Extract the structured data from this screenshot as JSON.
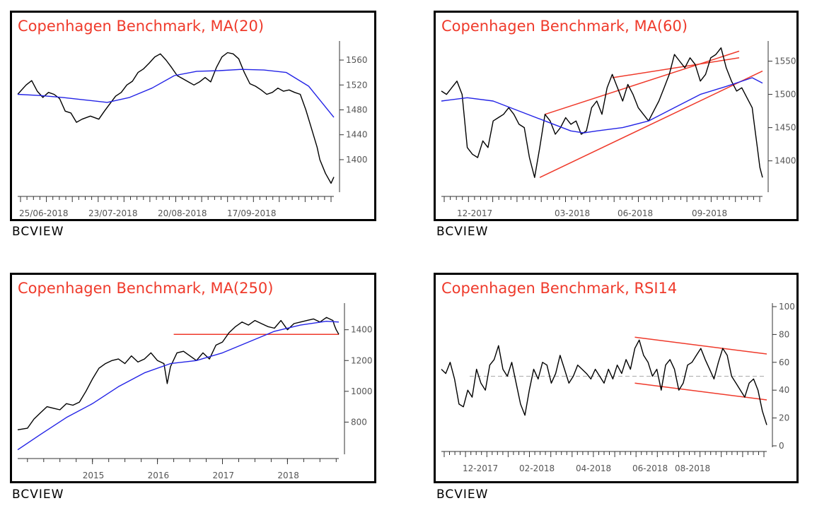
{
  "brand": "BCVIEW",
  "colors": {
    "title": "#ef3a2b",
    "price": "#000000",
    "ma": "#2323e6",
    "trend": "#ef3a2b",
    "midline": "#aaaaaa"
  },
  "chart_data": [
    {
      "type": "line",
      "title": "Copenhagen Benchmark, MA(20)",
      "x_tick_labels": [
        "25/06-2018",
        "23/07-2018",
        "20/08-2018",
        "17/09-2018"
      ],
      "y_ticks": [
        1400,
        1440,
        1480,
        1520,
        1560
      ],
      "ylim": [
        1350,
        1585
      ],
      "series": [
        {
          "role": "price",
          "x": [
            0,
            3,
            5,
            7,
            9,
            11,
            13,
            15,
            17,
            19,
            21,
            23,
            26,
            29,
            31,
            33,
            35,
            37,
            39,
            41,
            43,
            45,
            47,
            49,
            51,
            53,
            55,
            57,
            59,
            61,
            63,
            65,
            67,
            69,
            71,
            73,
            75,
            77,
            79,
            81,
            83,
            85,
            87,
            89,
            91,
            93,
            95,
            97,
            99,
            101,
            103,
            105,
            107,
            108,
            110,
            112,
            113
          ],
          "values": [
            1505,
            1520,
            1527,
            1510,
            1500,
            1508,
            1505,
            1498,
            1478,
            1475,
            1460,
            1465,
            1470,
            1465,
            1478,
            1490,
            1502,
            1508,
            1520,
            1526,
            1540,
            1546,
            1555,
            1565,
            1570,
            1560,
            1548,
            1535,
            1530,
            1525,
            1520,
            1525,
            1532,
            1525,
            1548,
            1565,
            1572,
            1570,
            1562,
            1540,
            1522,
            1518,
            1512,
            1505,
            1508,
            1515,
            1510,
            1512,
            1508,
            1505,
            1480,
            1450,
            1420,
            1400,
            1378,
            1362,
            1372
          ]
        },
        {
          "role": "ma",
          "name": "MA(20)",
          "x": [
            0,
            8,
            16,
            24,
            32,
            40,
            48,
            56,
            64,
            72,
            80,
            88,
            96,
            104,
            113
          ],
          "values": [
            1505,
            1503,
            1500,
            1496,
            1492,
            1500,
            1515,
            1535,
            1542,
            1543,
            1545,
            1544,
            1540,
            1518,
            1468
          ]
        }
      ]
    },
    {
      "type": "line",
      "title": "Copenhagen Benchmark, MA(60)",
      "x_tick_labels": [
        "12-2017",
        "03-2018",
        "06-2018",
        "09-2018"
      ],
      "y_ticks": [
        1400,
        1450,
        1500,
        1550
      ],
      "ylim": [
        1355,
        1575
      ],
      "series": [
        {
          "role": "price",
          "x": [
            0,
            2,
            4,
            6,
            8,
            10,
            12,
            14,
            16,
            18,
            20,
            22,
            24,
            26,
            28,
            30,
            32,
            34,
            36,
            38,
            40,
            42,
            44,
            46,
            48,
            50,
            52,
            54,
            56,
            58,
            60,
            62,
            64,
            66,
            68,
            70,
            72,
            74,
            76,
            78,
            80,
            82,
            84,
            86,
            88,
            90,
            92,
            94,
            96,
            98,
            100,
            102,
            104,
            106,
            108,
            110,
            112,
            114,
            116,
            118,
            120,
            121,
            122,
            123,
            124
          ],
          "values": [
            1505,
            1500,
            1510,
            1520,
            1500,
            1420,
            1410,
            1405,
            1430,
            1420,
            1460,
            1465,
            1470,
            1480,
            1470,
            1455,
            1450,
            1405,
            1375,
            1420,
            1470,
            1460,
            1440,
            1450,
            1465,
            1455,
            1460,
            1440,
            1445,
            1480,
            1490,
            1470,
            1510,
            1530,
            1510,
            1490,
            1515,
            1500,
            1480,
            1470,
            1460,
            1475,
            1490,
            1510,
            1530,
            1560,
            1550,
            1540,
            1555,
            1545,
            1520,
            1530,
            1555,
            1560,
            1570,
            1540,
            1520,
            1505,
            1510,
            1495,
            1480,
            1450,
            1420,
            1390,
            1375
          ]
        },
        {
          "role": "ma",
          "name": "MA(60)",
          "x": [
            0,
            10,
            20,
            30,
            40,
            50,
            55,
            60,
            70,
            80,
            90,
            100,
            110,
            120,
            124
          ],
          "values": [
            1490,
            1495,
            1490,
            1475,
            1460,
            1445,
            1442,
            1445,
            1450,
            1460,
            1480,
            1500,
            1512,
            1525,
            1517
          ]
        }
      ],
      "trendlines": [
        {
          "from": [
            40,
            1470
          ],
          "to": [
            115,
            1565
          ]
        },
        {
          "from": [
            38,
            1375
          ],
          "to": [
            124,
            1535
          ]
        },
        {
          "from": [
            66,
            1525
          ],
          "to": [
            115,
            1555
          ]
        }
      ]
    },
    {
      "type": "line",
      "title": "Copenhagen Benchmark, MA(250)",
      "x_tick_labels": [
        "2015",
        "2016",
        "2017",
        "2018"
      ],
      "y_ticks": [
        800,
        1000,
        1200,
        1400
      ],
      "ylim": [
        600,
        1550
      ],
      "series": [
        {
          "role": "price",
          "x": [
            2013.85,
            2014.0,
            2014.1,
            2014.2,
            2014.3,
            2014.4,
            2014.5,
            2014.6,
            2014.7,
            2014.8,
            2014.9,
            2015.0,
            2015.1,
            2015.2,
            2015.3,
            2015.4,
            2015.5,
            2015.6,
            2015.7,
            2015.8,
            2015.9,
            2016.0,
            2016.1,
            2016.15,
            2016.2,
            2016.3,
            2016.4,
            2016.5,
            2016.6,
            2016.7,
            2016.8,
            2016.9,
            2017.0,
            2017.1,
            2017.2,
            2017.3,
            2017.4,
            2017.5,
            2017.6,
            2017.7,
            2017.8,
            2017.9,
            2018.0,
            2018.1,
            2018.2,
            2018.3,
            2018.4,
            2018.5,
            2018.6,
            2018.7,
            2018.72,
            2018.75,
            2018.79
          ],
          "values": [
            750,
            760,
            820,
            860,
            900,
            890,
            880,
            920,
            910,
            930,
            1000,
            1080,
            1150,
            1180,
            1200,
            1210,
            1180,
            1230,
            1190,
            1210,
            1250,
            1200,
            1180,
            1050,
            1160,
            1250,
            1260,
            1230,
            1200,
            1250,
            1210,
            1300,
            1320,
            1380,
            1420,
            1450,
            1430,
            1460,
            1440,
            1420,
            1410,
            1460,
            1400,
            1440,
            1450,
            1460,
            1470,
            1450,
            1480,
            1460,
            1430,
            1400,
            1370
          ]
        },
        {
          "role": "ma",
          "name": "MA(250)",
          "x": [
            2013.85,
            2014.2,
            2014.6,
            2015.0,
            2015.4,
            2015.8,
            2016.2,
            2016.6,
            2017.0,
            2017.4,
            2017.8,
            2018.2,
            2018.6,
            2018.79
          ],
          "values": [
            620,
            720,
            830,
            920,
            1030,
            1120,
            1180,
            1200,
            1250,
            1320,
            1390,
            1430,
            1455,
            1450
          ]
        }
      ],
      "trendlines": [
        {
          "from": [
            2016.25,
            1370
          ],
          "to": [
            2018.79,
            1370
          ]
        }
      ]
    },
    {
      "type": "line",
      "title": "Copenhagen Benchmark, RSI14",
      "x_tick_labels": [
        "12-2017",
        "02-2018",
        "04-2018",
        "06-2018",
        "08-2018"
      ],
      "y_ticks": [
        0,
        20,
        40,
        60,
        80,
        100
      ],
      "ylim": [
        0,
        100
      ],
      "reference_line": 50,
      "series": [
        {
          "role": "rsi",
          "name": "RSI14",
          "x": [
            0,
            2,
            4,
            6,
            8,
            10,
            12,
            14,
            16,
            18,
            20,
            22,
            24,
            26,
            28,
            30,
            32,
            34,
            36,
            38,
            40,
            42,
            44,
            46,
            48,
            50,
            52,
            54,
            56,
            58,
            60,
            62,
            64,
            66,
            68,
            70,
            72,
            74,
            76,
            78,
            80,
            82,
            84,
            86,
            88,
            90,
            92,
            94,
            96,
            98,
            100,
            102,
            104,
            106,
            108,
            110,
            112,
            114,
            116,
            118,
            120,
            122,
            124,
            126,
            128,
            130,
            132,
            134,
            136,
            138,
            140,
            142,
            144,
            146,
            148
          ],
          "values": [
            55,
            52,
            60,
            48,
            30,
            28,
            40,
            35,
            55,
            45,
            40,
            58,
            62,
            72,
            55,
            50,
            60,
            45,
            30,
            22,
            40,
            55,
            48,
            60,
            58,
            45,
            52,
            65,
            55,
            45,
            50,
            58,
            55,
            52,
            48,
            55,
            50,
            45,
            55,
            48,
            58,
            52,
            62,
            55,
            70,
            76,
            65,
            60,
            50,
            55,
            40,
            58,
            62,
            55,
            40,
            45,
            58,
            60,
            65,
            70,
            62,
            55,
            48,
            60,
            70,
            65,
            50,
            45,
            40,
            35,
            45,
            48,
            40,
            25,
            15
          ]
        }
      ],
      "trendlines": [
        {
          "from": [
            88,
            78
          ],
          "to": [
            148,
            66
          ]
        },
        {
          "from": [
            88,
            45
          ],
          "to": [
            148,
            33
          ]
        }
      ]
    }
  ]
}
